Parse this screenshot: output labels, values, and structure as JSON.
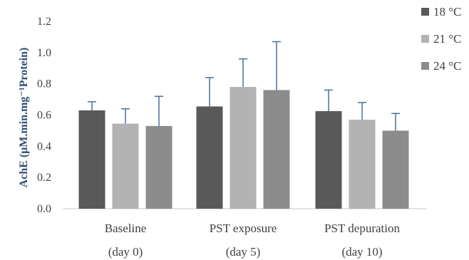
{
  "chart_data": {
    "type": "bar",
    "ylabel": "AchE (μM.min.mg⁻¹Protein)",
    "ylim": [
      0,
      1.2
    ],
    "yticks": [
      "0.0",
      "0.2",
      "0.4",
      "0.6",
      "0.8",
      "1.0",
      "1.2"
    ],
    "grid": false,
    "legend_position": "top-right",
    "categories": [
      {
        "line1": "Baseline",
        "line2": "(day 0)"
      },
      {
        "line1": "PST exposure",
        "line2": "(day 5)"
      },
      {
        "line1": "PST depuration",
        "line2": "(day 10)"
      }
    ],
    "series": [
      {
        "name": "18 °C",
        "color": "#595959",
        "values": [
          0.63,
          0.655,
          0.625
        ],
        "errors": [
          0.055,
          0.185,
          0.135
        ]
      },
      {
        "name": "21 °C",
        "color": "#b3b3b3",
        "values": [
          0.545,
          0.78,
          0.57
        ],
        "errors": [
          0.095,
          0.18,
          0.11
        ]
      },
      {
        "name": "24 °C",
        "color": "#8c8c8c",
        "values": [
          0.53,
          0.76,
          0.5
        ],
        "errors": [
          0.19,
          0.31,
          0.11
        ]
      }
    ],
    "error_bar_color": "#44729e"
  }
}
